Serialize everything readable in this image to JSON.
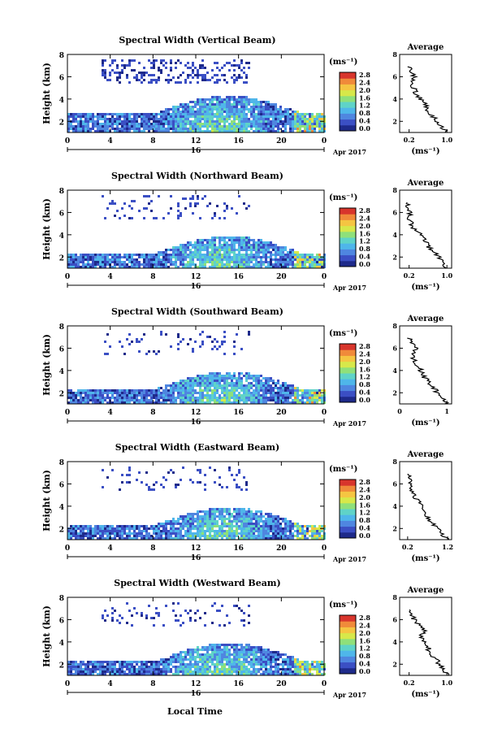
{
  "shared": {
    "height_label": "Height (km)",
    "colorbar_unit": "(ms⁻¹)",
    "colorbar_ticks": [
      "2.8",
      "2.4",
      "2.0",
      "1.6",
      "1.2",
      "0.8",
      "0.4",
      "0.0"
    ],
    "avg_title": "Average",
    "avg_unit": "(ms⁻¹)",
    "date_label": "16",
    "month_label": "Apr 2017",
    "x_ticks": [
      "0",
      "4",
      "8",
      "12",
      "16",
      "20",
      "0"
    ],
    "xlabel": "Local Time",
    "colors": [
      "#1e2a8a",
      "#3b4fc4",
      "#4f86e0",
      "#4fb6ea",
      "#5fd3c8",
      "#8fe07a",
      "#d7e84a",
      "#f5c542",
      "#f08a3a",
      "#d8352c"
    ]
  },
  "chart_data": [
    {
      "type": "heatmap",
      "title": "Spectral Width (Vertical Beam)",
      "x_range_hours": [
        0,
        24
      ],
      "y_range_km": [
        1,
        8
      ],
      "color_range": [
        0.0,
        2.8
      ],
      "average_profile": {
        "x_ticks": [
          "0.2",
          "1.0"
        ],
        "x_range": [
          0,
          1.1
        ],
        "height_km": [
          1,
          1.5,
          2,
          2.5,
          3,
          3.5,
          4,
          4.5,
          5,
          5.5,
          6,
          6.5,
          7
        ],
        "values": [
          1.0,
          0.9,
          0.8,
          0.7,
          0.6,
          0.55,
          0.45,
          0.35,
          0.3,
          0.25,
          0.3,
          0.22,
          0.2
        ]
      }
    },
    {
      "type": "heatmap",
      "title": "Spectral Width (Northward Beam)",
      "x_range_hours": [
        0,
        24
      ],
      "y_range_km": [
        1,
        8
      ],
      "color_range": [
        0.0,
        2.8
      ],
      "average_profile": {
        "x_ticks": [
          "0.2",
          "1.0"
        ],
        "x_range": [
          0,
          1.1
        ],
        "height_km": [
          1,
          1.5,
          2,
          2.5,
          3,
          3.5,
          4,
          4.5,
          5,
          5.5,
          6,
          6.5,
          7
        ],
        "values": [
          1.0,
          0.9,
          0.82,
          0.72,
          0.6,
          0.55,
          0.45,
          0.3,
          0.25,
          0.2,
          0.22,
          0.18,
          0.2
        ]
      }
    },
    {
      "type": "heatmap",
      "title": "Spectral Width (Southward Beam)",
      "x_range_hours": [
        0,
        24
      ],
      "y_range_km": [
        1,
        8
      ],
      "color_range": [
        0.0,
        2.8
      ],
      "average_profile": {
        "x_ticks": [
          "0",
          "1"
        ],
        "x_range": [
          0,
          1.1
        ],
        "height_km": [
          1,
          1.5,
          2,
          2.5,
          3,
          3.5,
          4,
          4.5,
          5,
          5.5,
          6,
          6.5,
          7
        ],
        "values": [
          1.0,
          0.92,
          0.8,
          0.7,
          0.62,
          0.5,
          0.45,
          0.35,
          0.3,
          0.28,
          0.35,
          0.25,
          0.2
        ]
      }
    },
    {
      "type": "heatmap",
      "title": "Spectral Width (Eastward Beam)",
      "x_range_hours": [
        0,
        24
      ],
      "y_range_km": [
        1,
        8
      ],
      "color_range": [
        0.0,
        2.8
      ],
      "average_profile": {
        "x_ticks": [
          "0.2",
          "1.2"
        ],
        "x_range": [
          0,
          1.3
        ],
        "height_km": [
          1,
          1.5,
          2,
          2.5,
          3,
          3.5,
          4,
          4.5,
          5,
          5.5,
          6,
          6.5,
          7
        ],
        "values": [
          1.2,
          1.05,
          0.95,
          0.8,
          0.7,
          0.62,
          0.55,
          0.45,
          0.35,
          0.3,
          0.28,
          0.25,
          0.2
        ]
      }
    },
    {
      "type": "heatmap",
      "title": "Spectral Width (Westward Beam)",
      "x_range_hours": [
        0,
        24
      ],
      "y_range_km": [
        1,
        8
      ],
      "color_range": [
        0.0,
        2.8
      ],
      "average_profile": {
        "x_ticks": [
          "0.2",
          "1.0"
        ],
        "x_range": [
          0,
          1.1
        ],
        "height_km": [
          1,
          1.5,
          2,
          2.5,
          3,
          3.5,
          4,
          4.5,
          5,
          5.5,
          6,
          6.5,
          7
        ],
        "values": [
          1.0,
          0.92,
          0.85,
          0.75,
          0.65,
          0.6,
          0.5,
          0.45,
          0.55,
          0.4,
          0.3,
          0.25,
          0.2
        ]
      }
    }
  ]
}
